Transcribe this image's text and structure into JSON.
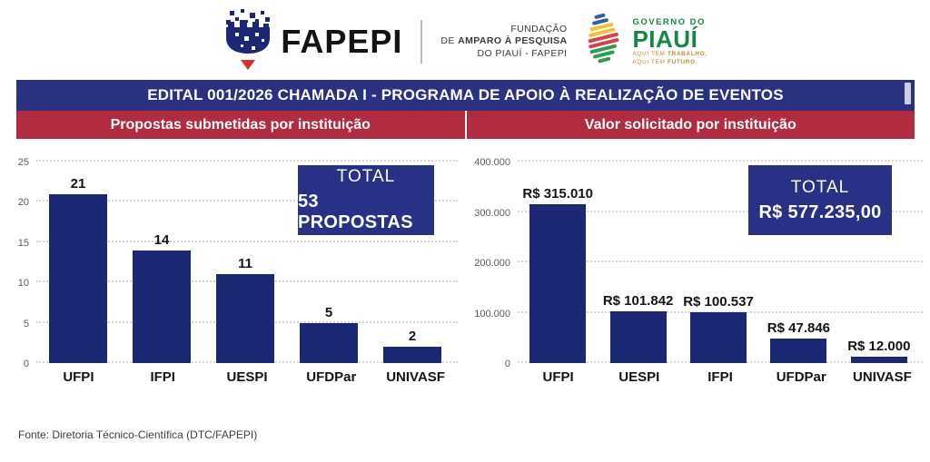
{
  "header": {
    "fapepi_wordmark": "FAPEPI",
    "foundation": {
      "line1": "FUNDAÇÃO",
      "line2_normal": "DE ",
      "line2_bold": "AMPARO À PESQUISA",
      "line3": "DO PIAUÍ - FAPEPI"
    },
    "gov": {
      "line1": "GOVERNO DO",
      "line2": "PIAUÍ",
      "tag1_normal": "AQUI TEM ",
      "tag1_bold": "TRABALHO.",
      "tag2_normal": "AQUI TEM ",
      "tag2_bold": "FUTURO."
    }
  },
  "title_bar": {
    "text": "EDITAL 001/2026 CHAMADA I - PROGRAMA DE APOIO À REALIZAÇÃO DE EVENTOS"
  },
  "chart_data": [
    {
      "type": "bar",
      "title": "Propostas submetidas por instituição",
      "categories": [
        "UFPI",
        "IFPI",
        "UESPI",
        "UFDPar",
        "UNIVASF"
      ],
      "values": [
        21,
        14,
        11,
        5,
        2
      ],
      "value_labels": [
        "21",
        "14",
        "11",
        "5",
        "2"
      ],
      "ylim": [
        0,
        25
      ],
      "yticks": [
        0,
        5,
        10,
        15,
        20,
        25
      ],
      "ytick_labels": [
        "0",
        "5",
        "10",
        "15",
        "20",
        "25"
      ],
      "grid": true,
      "legend": "none",
      "total_box": {
        "line1": "TOTAL",
        "line2": "53 PROPOSTAS"
      }
    },
    {
      "type": "bar",
      "title": "Valor solicitado por instituição",
      "categories": [
        "UFPI",
        "UESPI",
        "IFPI",
        "UFDPar",
        "UNIVASF"
      ],
      "values": [
        315010,
        101842,
        100537,
        47846,
        12000
      ],
      "value_labels": [
        "R$ 315.010",
        "R$ 101.842",
        "R$ 100.537",
        "R$ 47.846",
        "R$ 12.000"
      ],
      "ylim": [
        0,
        400000
      ],
      "yticks": [
        0,
        100000,
        200000,
        300000,
        400000
      ],
      "ytick_labels": [
        "0",
        "100.000",
        "200.000",
        "300.000",
        "400.000"
      ],
      "grid": true,
      "legend": "none",
      "total_box": {
        "line1": "TOTAL",
        "line2": "R$ 577.235,00"
      }
    }
  ],
  "footer": {
    "source": "Fonte: Diretoria Técnico-Científica (DTC/FAPEPI)"
  },
  "colors": {
    "title_navy": "#2b3181",
    "header_red": "#b12c3e",
    "bar_navy": "#1c2776",
    "total_navy": "#293186",
    "gov_green": "#14883f",
    "fapepi_red": "#d5312e"
  }
}
